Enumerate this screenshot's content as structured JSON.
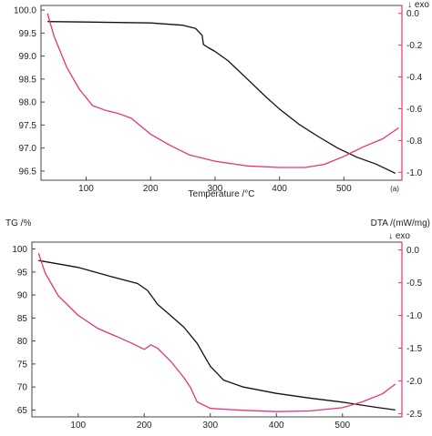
{
  "chart_data": [
    {
      "type": "line",
      "panel_label": "(a)",
      "xlabel": "Temperature /°C",
      "left_axis": {
        "label": "",
        "ticks": [
          96.5,
          97.0,
          97.5,
          98.0,
          98.5,
          99.0,
          99.5,
          100.0
        ],
        "range": [
          96.3,
          100.1
        ]
      },
      "right_axis": {
        "label": "↓ exo",
        "ticks": [
          0.0,
          -0.2,
          -0.4,
          -0.6,
          -0.8,
          -1.0
        ],
        "range": [
          -1.05,
          0.05
        ]
      },
      "x_axis": {
        "ticks": [
          100,
          200,
          300,
          400,
          500
        ],
        "range": [
          30,
          590
        ]
      },
      "series": [
        {
          "axis": "left",
          "color": "#111111",
          "x": [
            40,
            100,
            150,
            200,
            250,
            270,
            280,
            282,
            290,
            300,
            320,
            350,
            380,
            400,
            430,
            460,
            490,
            520,
            550,
            580
          ],
          "y": [
            99.75,
            99.74,
            99.73,
            99.72,
            99.67,
            99.6,
            99.45,
            99.25,
            99.18,
            99.1,
            98.9,
            98.5,
            98.1,
            97.85,
            97.52,
            97.25,
            97.0,
            96.8,
            96.65,
            96.45
          ]
        },
        {
          "axis": "right",
          "color": "#e8337a",
          "x": [
            40,
            50,
            70,
            90,
            110,
            130,
            150,
            170,
            200,
            230,
            260,
            300,
            350,
            400,
            440,
            470,
            500,
            530,
            560,
            585
          ],
          "y": [
            0.0,
            -0.14,
            -0.34,
            -0.48,
            -0.58,
            -0.61,
            -0.63,
            -0.66,
            -0.76,
            -0.83,
            -0.89,
            -0.93,
            -0.96,
            -0.97,
            -0.97,
            -0.95,
            -0.9,
            -0.84,
            -0.79,
            -0.72
          ]
        }
      ]
    },
    {
      "type": "line",
      "panel_label": "",
      "xlabel": "",
      "left_axis": {
        "label": "TG /%",
        "ticks": [
          65,
          70,
          75,
          80,
          85,
          90,
          95,
          100
        ],
        "range": [
          63.5,
          101.5
        ]
      },
      "right_axis": {
        "label": "DTA /(mW/mg)",
        "sublabel": "↓ exo",
        "ticks": [
          0.0,
          -0.5,
          -1.0,
          -1.5,
          -2.0,
          -2.5
        ],
        "range": [
          -2.55,
          0.12
        ]
      },
      "x_axis": {
        "ticks": [
          100,
          200,
          300,
          400,
          500
        ],
        "range": [
          30,
          590
        ]
      },
      "series": [
        {
          "axis": "left",
          "color": "#111111",
          "x": [
            40,
            60,
            100,
            150,
            190,
            205,
            220,
            240,
            260,
            280,
            290,
            300,
            320,
            350,
            400,
            450,
            500,
            550,
            580
          ],
          "y": [
            97.5,
            97.0,
            96.0,
            94.0,
            92.5,
            91.0,
            88.0,
            85.5,
            83.0,
            79.5,
            77.0,
            74.5,
            71.5,
            70.0,
            68.6,
            67.6,
            66.7,
            65.6,
            65.0
          ]
        },
        {
          "axis": "right",
          "color": "#e8337a",
          "x": [
            40,
            50,
            70,
            100,
            130,
            160,
            180,
            200,
            210,
            220,
            240,
            260,
            270,
            280,
            300,
            350,
            400,
            450,
            500,
            530,
            560,
            580
          ],
          "y": [
            -0.05,
            -0.35,
            -0.7,
            -1.0,
            -1.2,
            -1.33,
            -1.42,
            -1.52,
            -1.45,
            -1.5,
            -1.7,
            -1.95,
            -2.1,
            -2.32,
            -2.42,
            -2.45,
            -2.47,
            -2.46,
            -2.41,
            -2.32,
            -2.2,
            -2.05
          ]
        }
      ]
    }
  ]
}
